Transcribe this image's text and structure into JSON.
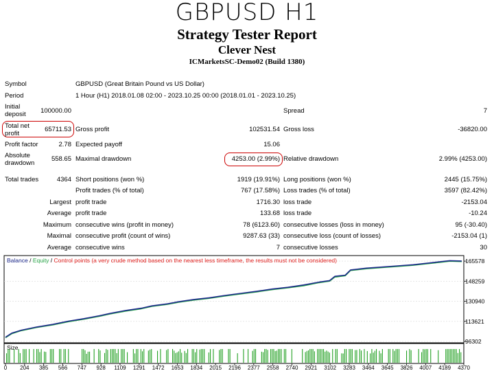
{
  "header": {
    "big_title": "GBPUSD H1",
    "report_title": "Strategy Tester Report",
    "ea_name": "Clever Nest",
    "server": "ICMarketsSC-Demo02 (Build 1380)"
  },
  "report": {
    "symbol_label": "Symbol",
    "symbol_value": "GBPUSD (Great Britain Pound vs US Dollar)",
    "period_label": "Period",
    "period_value": "1 Hour (H1) 2018.01.08 02:00 - 2023.10.25 00:00 (2018.01.01 - 2023.10.25)",
    "initial_deposit_label_1": "Initial",
    "initial_deposit_label_2": "deposit",
    "initial_deposit_value": "100000.00",
    "spread_label": "Spread",
    "spread_value": "7",
    "total_net_profit_label_1": "Total net",
    "total_net_profit_label_2": "profit",
    "total_net_profit_value": "65711.53",
    "gross_profit_label": "Gross profit",
    "gross_profit_value": "102531.54",
    "gross_loss_label": "Gross loss",
    "gross_loss_value": "-36820.00",
    "profit_factor_label": "Profit factor",
    "profit_factor_value": "2.78",
    "expected_payoff_label": "Expected payoff",
    "expected_payoff_value": "15.06",
    "absolute_drawdown_label_1": "Absolute",
    "absolute_drawdown_label_2": "drawdown",
    "absolute_drawdown_value": "558.65",
    "maximal_drawdown_label": "Maximal drawdown",
    "maximal_drawdown_value": "4253.00 (2.99%)",
    "relative_drawdown_label": "Relative drawdown",
    "relative_drawdown_value": "2.99% (4253.00)",
    "total_trades_label": "Total trades",
    "total_trades_value": "4364",
    "short_positions_label": "Short positions (won %)",
    "short_positions_value": "1919 (19.91%)",
    "long_positions_label": "Long positions (won %)",
    "long_positions_value": "2445 (15.75%)",
    "profit_trades_label": "Profit trades (% of total)",
    "profit_trades_value": "767 (17.58%)",
    "loss_trades_label": "Loss trades (% of total)",
    "loss_trades_value": "3597 (82.42%)",
    "largest_label": "Largest",
    "largest_profit_label": "profit trade",
    "largest_profit_value": "1716.30",
    "largest_loss_label": "loss trade",
    "largest_loss_value": "-2153.04",
    "average_label": "Average",
    "average_profit_label": "profit trade",
    "average_profit_value": "133.68",
    "average_loss_label": "loss trade",
    "average_loss_value": "-10.24",
    "maximum_label": "Maximum",
    "max_consec_wins_label": "consecutive wins (profit in money)",
    "max_consec_wins_value": "78 (6123.60)",
    "max_consec_losses_label": "consecutive losses (loss in money)",
    "max_consec_losses_value": "95 (-30.40)",
    "maximal_label": "Maximal",
    "maximal_consec_profit_label": "consecutive profit (count of wins)",
    "maximal_consec_profit_value": "9287.63 (33)",
    "maximal_consec_loss_label": "consecutive loss (count of losses)",
    "maximal_consec_loss_value": "-2153.04 (1)",
    "average2_label": "Average",
    "avg_consec_wins_label": "consecutive wins",
    "avg_consec_wins_value": "7",
    "avg_consec_losses_label": "consecutive losses",
    "avg_consec_losses_value": "30"
  },
  "chart_data": {
    "type": "line",
    "legend": {
      "balance": "Balance",
      "sep1": " / ",
      "equity": "Equity",
      "sep2": " / ",
      "control": "Control points (a very crude method based on the nearest less timeframe, the results must not be considered)"
    },
    "y_ticks": [
      "165578",
      "148259",
      "130940",
      "113621",
      "96302"
    ],
    "y_tick_values": [
      165578,
      148259,
      130940,
      113621,
      96302
    ],
    "ylim": [
      96302,
      168000
    ],
    "xlim": [
      0,
      4364
    ],
    "x_ticks": [
      "0",
      "204",
      "385",
      "566",
      "747",
      "928",
      "1109",
      "1291",
      "1472",
      "1653",
      "1834",
      "2015",
      "2196",
      "2377",
      "2558",
      "2740",
      "2921",
      "3102",
      "3283",
      "3464",
      "3645",
      "3826",
      "4007",
      "4189",
      "4370"
    ],
    "size_label": "Size",
    "series": [
      {
        "name": "Balance",
        "color": "#1e2a8c",
        "x": [
          0,
          60,
          150,
          300,
          450,
          600,
          750,
          900,
          1000,
          1150,
          1300,
          1400,
          1550,
          1650,
          1800,
          1950,
          2100,
          2250,
          2400,
          2550,
          2700,
          2850,
          3000,
          3100,
          3150,
          3250,
          3300,
          3450,
          3600,
          3750,
          3900,
          4050,
          4150,
          4250,
          4364
        ],
        "values": [
          100000,
          103500,
          106000,
          108800,
          111000,
          113800,
          116000,
          118500,
          120500,
          123000,
          125000,
          127000,
          128800,
          130500,
          132500,
          134000,
          136000,
          137800,
          139500,
          141500,
          143000,
          145000,
          147500,
          148800,
          152500,
          153500,
          158000,
          159500,
          160500,
          161500,
          162500,
          164000,
          165000,
          166000,
          165700
        ]
      },
      {
        "name": "Equity",
        "color": "#2aa84a",
        "x": [
          0,
          60,
          150,
          300,
          450,
          600,
          750,
          900,
          1000,
          1150,
          1300,
          1400,
          1550,
          1650,
          1800,
          1950,
          2100,
          2250,
          2400,
          2550,
          2700,
          2850,
          3000,
          3100,
          3150,
          3250,
          3300,
          3450,
          3600,
          3750,
          3900,
          4050,
          4150,
          4250,
          4364
        ],
        "values": [
          99500,
          103000,
          105600,
          108400,
          110500,
          113300,
          115500,
          118000,
          120000,
          122500,
          124500,
          126500,
          128300,
          130000,
          132000,
          133500,
          135500,
          137300,
          139000,
          141000,
          142500,
          144300,
          147000,
          148300,
          151800,
          153000,
          157500,
          159000,
          160000,
          161000,
          162000,
          163500,
          164500,
          165500,
          165200
        ]
      }
    ]
  }
}
